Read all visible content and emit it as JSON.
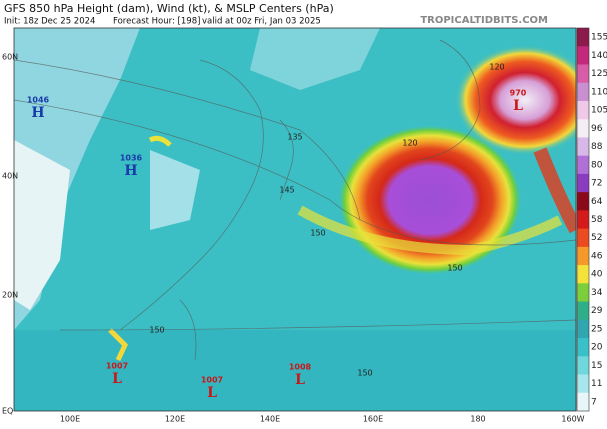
{
  "header": {
    "title": "GFS 850 hPa Height (dam), Wind (kt), & MSLP Centers (hPa)",
    "init": "Init: 18z Dec 25 2024",
    "forecast_hour": "Forecast Hour: [198]",
    "valid": "valid at 00z Fri, Jan 03 2025",
    "site": "TROPICALTIDBITS.COM"
  },
  "map": {
    "lat_labels": [
      "60N",
      "40N",
      "20N",
      "EQ"
    ],
    "lon_labels": [
      "100E",
      "120E",
      "140E",
      "160E",
      "180",
      "160W"
    ],
    "pressure_centers": [
      {
        "value": "1046",
        "kind": "H"
      },
      {
        "value": "1036",
        "kind": "H"
      },
      {
        "value": "970",
        "kind": "L"
      },
      {
        "value": "1007",
        "kind": "L"
      },
      {
        "value": "1007",
        "kind": "L"
      },
      {
        "value": "1008",
        "kind": "L"
      }
    ],
    "contour_labels": [
      "135",
      "120",
      "145",
      "150",
      "150",
      "150",
      "150",
      "120"
    ]
  },
  "colorbar": {
    "values": [
      155,
      140,
      125,
      110,
      105,
      96,
      88,
      80,
      72,
      64,
      58,
      52,
      46,
      40,
      34,
      29,
      25,
      20,
      15,
      11,
      7
    ],
    "colors": [
      "#8c1a4a",
      "#c2297a",
      "#d85ca8",
      "#c890d0",
      "#f0c8e8",
      "#f4eef4",
      "#d8b8e8",
      "#b070d8",
      "#8a3cc0",
      "#8a0a1a",
      "#d41a1a",
      "#ec4a20",
      "#f59a2a",
      "#f2e23a",
      "#7ccf3a",
      "#2fae8a",
      "#2fa6b0",
      "#39c0c8",
      "#6ed8dc",
      "#a8e6ee",
      "#e8f6fa"
    ]
  }
}
